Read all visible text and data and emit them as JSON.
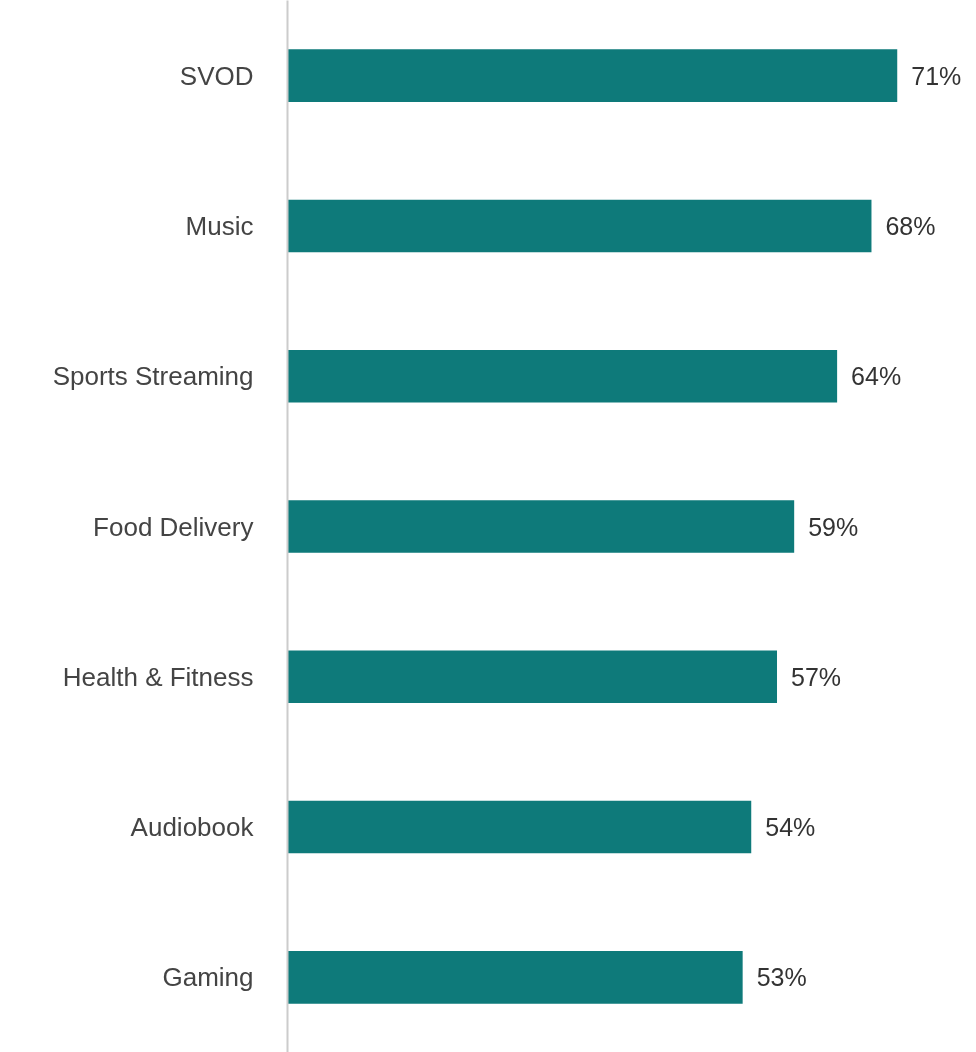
{
  "chart_data": {
    "type": "bar",
    "orientation": "horizontal",
    "categories": [
      "SVOD",
      "Music",
      "Sports Streaming",
      "Food Delivery",
      "Health & Fitness",
      "Audiobook",
      "Gaming"
    ],
    "values": [
      71,
      68,
      64,
      59,
      57,
      54,
      53
    ],
    "value_labels": [
      "71%",
      "68%",
      "64%",
      "59%",
      "57%",
      "54%",
      "53%"
    ],
    "color": "#0e7a7a",
    "grid": false
  }
}
